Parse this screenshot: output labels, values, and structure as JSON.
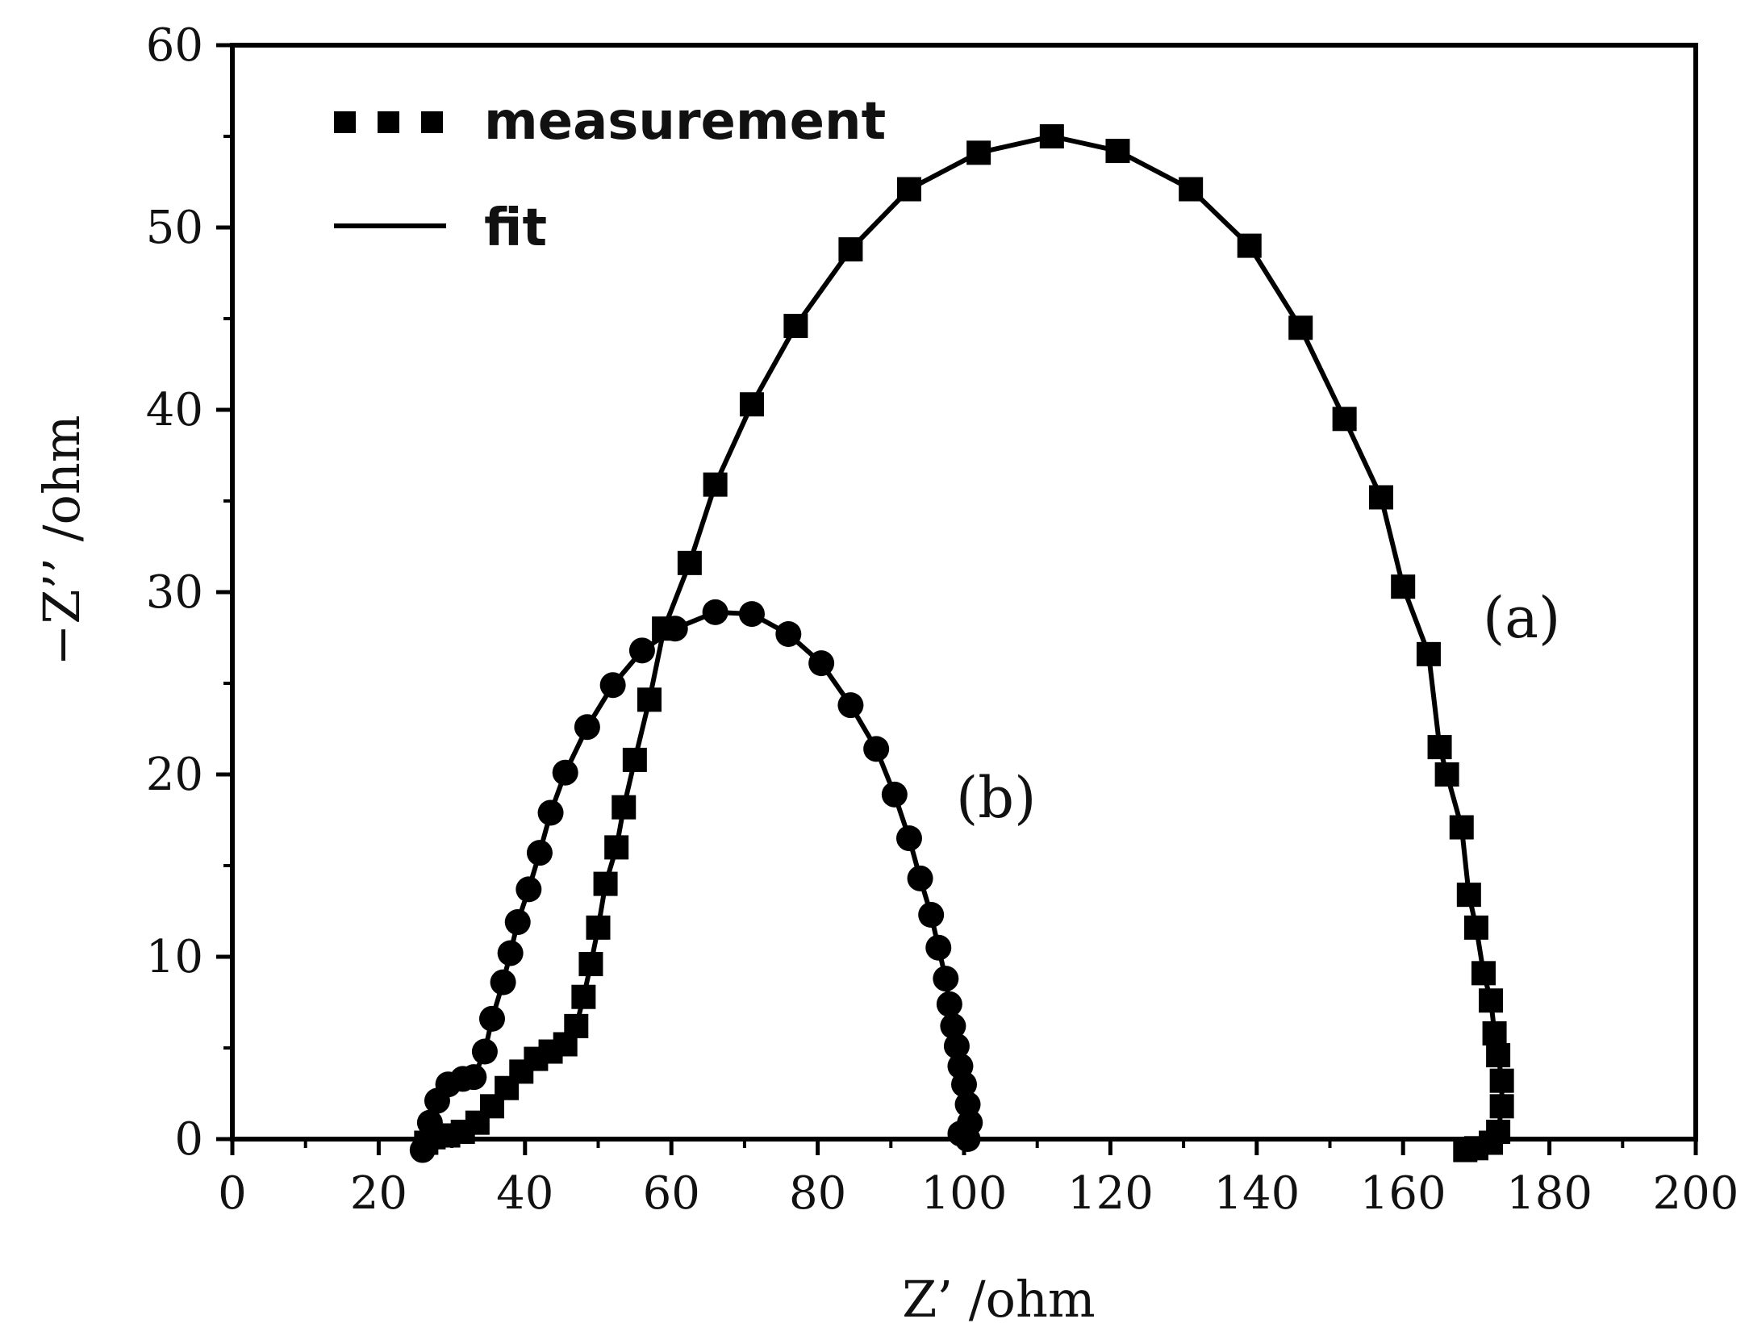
{
  "chart_data": {
    "type": "scatter",
    "title": "",
    "xlabel": "Z’ /ohm",
    "ylabel": "−Z’’ /ohm",
    "xlim": [
      0,
      200
    ],
    "ylim": [
      0,
      60
    ],
    "x_ticks": [
      "0",
      "20",
      "40",
      "60",
      "80",
      "100",
      "120",
      "140",
      "160",
      "180",
      "200"
    ],
    "y_ticks": [
      "0",
      "10",
      "20",
      "30",
      "40",
      "50",
      "60"
    ],
    "grid": false,
    "legend": {
      "placement": "top-left",
      "measurement_label": "measurement",
      "fit_label": "fit"
    },
    "series": [
      {
        "name": "(a)",
        "marker": "square",
        "points": [
          [
            26.5,
            -0.2
          ],
          [
            27.5,
            0.1
          ],
          [
            29.5,
            0.2
          ],
          [
            31.5,
            0.4
          ],
          [
            33.5,
            0.9
          ],
          [
            35.5,
            1.8
          ],
          [
            37.5,
            2.8
          ],
          [
            39.5,
            3.7
          ],
          [
            41.5,
            4.4
          ],
          [
            43.5,
            4.8
          ],
          [
            45.5,
            5.2
          ],
          [
            47.0,
            6.2
          ],
          [
            48.0,
            7.8
          ],
          [
            49.0,
            9.6
          ],
          [
            50.0,
            11.6
          ],
          [
            51.0,
            14.0
          ],
          [
            52.5,
            16.0
          ],
          [
            53.5,
            18.2
          ],
          [
            55.0,
            20.8
          ],
          [
            57.0,
            24.1
          ],
          [
            59.0,
            28.0
          ],
          [
            62.5,
            31.6
          ],
          [
            66.0,
            35.9
          ],
          [
            71.0,
            40.3
          ],
          [
            77.0,
            44.6
          ],
          [
            84.5,
            48.8
          ],
          [
            92.5,
            52.1
          ],
          [
            102.0,
            54.1
          ],
          [
            112.0,
            55.0
          ],
          [
            121.0,
            54.2
          ],
          [
            131.0,
            52.1
          ],
          [
            139.0,
            49.0
          ],
          [
            146.0,
            44.5
          ],
          [
            152.0,
            39.5
          ],
          [
            157.0,
            35.2
          ],
          [
            160.0,
            30.3
          ],
          [
            163.5,
            26.6
          ],
          [
            165.0,
            21.5
          ],
          [
            166.0,
            20.0
          ],
          [
            168.0,
            17.1
          ],
          [
            169.0,
            13.4
          ],
          [
            170.0,
            11.6
          ],
          [
            171.0,
            9.1
          ],
          [
            172.0,
            7.6
          ],
          [
            172.5,
            5.8
          ],
          [
            173.0,
            4.6
          ],
          [
            173.5,
            3.2
          ],
          [
            173.5,
            1.8
          ],
          [
            173.0,
            0.4
          ],
          [
            172.0,
            -0.2
          ],
          [
            170.0,
            -0.5
          ],
          [
            168.5,
            -0.6
          ]
        ]
      },
      {
        "name": "(b)",
        "marker": "circle",
        "points": [
          [
            26.0,
            -0.6
          ],
          [
            27.0,
            0.9
          ],
          [
            28.0,
            2.1
          ],
          [
            29.5,
            3.0
          ],
          [
            31.5,
            3.3
          ],
          [
            33.0,
            3.4
          ],
          [
            34.5,
            4.8
          ],
          [
            35.5,
            6.6
          ],
          [
            37.0,
            8.6
          ],
          [
            38.0,
            10.2
          ],
          [
            39.0,
            11.9
          ],
          [
            40.5,
            13.7
          ],
          [
            42.0,
            15.7
          ],
          [
            43.5,
            17.9
          ],
          [
            45.5,
            20.1
          ],
          [
            48.5,
            22.6
          ],
          [
            52.0,
            24.9
          ],
          [
            56.0,
            26.8
          ],
          [
            60.5,
            28.0
          ],
          [
            66.0,
            28.9
          ],
          [
            71.0,
            28.8
          ],
          [
            76.0,
            27.7
          ],
          [
            80.5,
            26.1
          ],
          [
            84.5,
            23.8
          ],
          [
            88.0,
            21.4
          ],
          [
            90.5,
            18.9
          ],
          [
            92.5,
            16.5
          ],
          [
            94.0,
            14.3
          ],
          [
            95.5,
            12.3
          ],
          [
            96.5,
            10.5
          ],
          [
            97.5,
            8.8
          ],
          [
            98.0,
            7.4
          ],
          [
            98.5,
            6.2
          ],
          [
            99.0,
            5.1
          ],
          [
            99.5,
            4.0
          ],
          [
            100.0,
            3.0
          ],
          [
            100.5,
            1.9
          ],
          [
            100.8,
            0.9
          ],
          [
            100.5,
            0.0
          ],
          [
            99.5,
            0.3
          ]
        ]
      }
    ]
  }
}
